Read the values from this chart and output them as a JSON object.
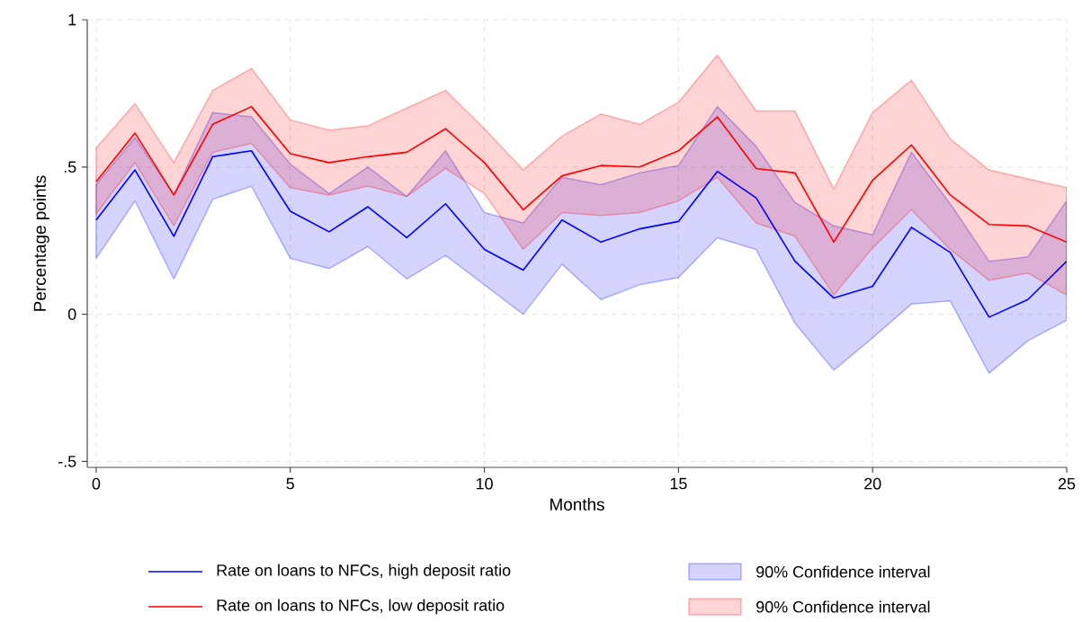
{
  "chart_data": {
    "type": "line",
    "xlabel": "Months",
    "ylabel": "Percentage points",
    "x": [
      0,
      1,
      2,
      3,
      4,
      5,
      6,
      7,
      8,
      9,
      10,
      11,
      12,
      13,
      14,
      15,
      16,
      17,
      18,
      19,
      20,
      21,
      22,
      23,
      24,
      25
    ],
    "series": [
      {
        "name": "Rate on loans to NFCs, high deposit ratio",
        "color": "#0000ff",
        "values": [
          0.32,
          0.49,
          0.265,
          0.535,
          0.555,
          0.35,
          0.28,
          0.365,
          0.26,
          0.375,
          0.22,
          0.15,
          0.32,
          0.245,
          0.29,
          0.315,
          0.485,
          0.395,
          0.18,
          0.055,
          0.095,
          0.295,
          0.21,
          -0.01,
          0.05,
          0.18
        ],
        "lower": [
          0.19,
          0.385,
          0.12,
          0.39,
          0.435,
          0.19,
          0.155,
          0.23,
          0.12,
          0.2,
          0.1,
          0.0,
          0.17,
          0.05,
          0.1,
          0.125,
          0.26,
          0.22,
          -0.03,
          -0.19,
          -0.08,
          0.035,
          0.045,
          -0.2,
          -0.09,
          -0.02
        ],
        "upper": [
          0.44,
          0.6,
          0.405,
          0.685,
          0.67,
          0.51,
          0.41,
          0.5,
          0.4,
          0.555,
          0.345,
          0.31,
          0.465,
          0.44,
          0.48,
          0.505,
          0.705,
          0.57,
          0.38,
          0.3,
          0.27,
          0.55,
          0.375,
          0.18,
          0.195,
          0.385
        ]
      },
      {
        "name": "Rate on loans to NFCs, low deposit ratio",
        "color": "#ff0000",
        "values": [
          0.45,
          0.615,
          0.405,
          0.645,
          0.705,
          0.545,
          0.515,
          0.535,
          0.55,
          0.63,
          0.515,
          0.355,
          0.47,
          0.505,
          0.5,
          0.555,
          0.67,
          0.495,
          0.48,
          0.245,
          0.455,
          0.575,
          0.405,
          0.305,
          0.3,
          0.245
        ],
        "lower": [
          0.34,
          0.515,
          0.3,
          0.55,
          0.58,
          0.43,
          0.405,
          0.435,
          0.4,
          0.495,
          0.41,
          0.22,
          0.345,
          0.335,
          0.345,
          0.385,
          0.465,
          0.31,
          0.265,
          0.065,
          0.225,
          0.355,
          0.22,
          0.115,
          0.14,
          0.065
        ],
        "upper": [
          0.565,
          0.715,
          0.515,
          0.76,
          0.835,
          0.66,
          0.625,
          0.64,
          0.7,
          0.76,
          0.63,
          0.49,
          0.605,
          0.68,
          0.645,
          0.72,
          0.88,
          0.69,
          0.69,
          0.425,
          0.685,
          0.795,
          0.595,
          0.49,
          0.46,
          0.43
        ]
      }
    ],
    "annotations": [
      "90% Confidence interval",
      "90% Confidence interval"
    ],
    "xlim": [
      -0.23,
      25
    ],
    "ylim": [
      -0.52,
      1
    ],
    "xticks": [
      0,
      5,
      10,
      15,
      20,
      25
    ],
    "yticks": [
      {
        "value": -0.5,
        "label": "-.5"
      },
      {
        "value": 0,
        "label": "0"
      },
      {
        "value": 0.5,
        "label": ".5"
      },
      {
        "value": 1,
        "label": "1"
      }
    ],
    "grid": true,
    "legend": "bottom",
    "marker": "none"
  }
}
